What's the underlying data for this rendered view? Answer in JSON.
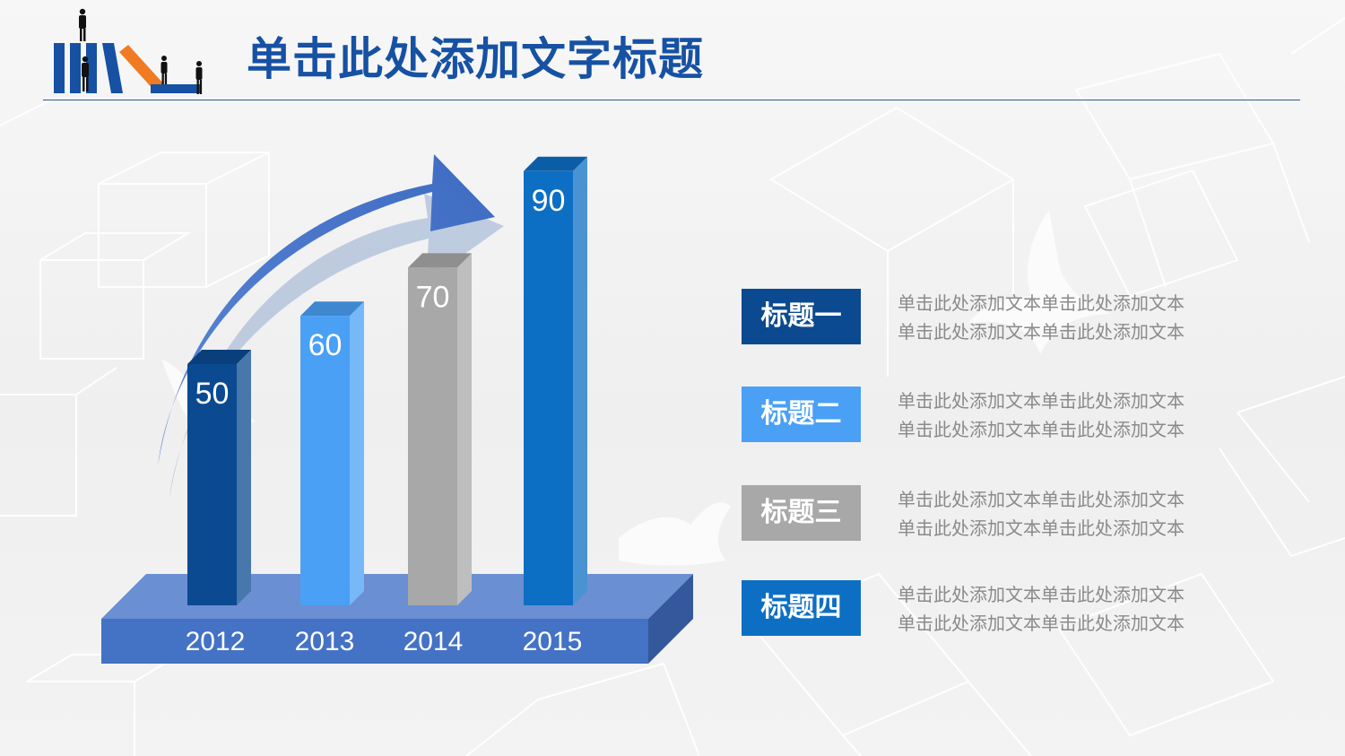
{
  "title": "单击此处添加文字标题",
  "colors": {
    "title": "#1651a3",
    "rule": "#2a5aa0",
    "bar_2012": "#0b4a90",
    "bar_2013": "#4aa0f5",
    "bar_2014": "#a8a8a8",
    "bar_2015": "#0d6fc3",
    "platform": "#4a7fcf",
    "arrow": "#4472c4",
    "legend_text": "#8a8a8a"
  },
  "logo": {
    "icon": "bars-with-businessmen-logo"
  },
  "chart_data": {
    "type": "bar",
    "categories": [
      "2012",
      "2013",
      "2014",
      "2015"
    ],
    "values": [
      50,
      60,
      70,
      90
    ],
    "data_labels": [
      "50",
      "60",
      "70",
      "90"
    ],
    "bar_colors": [
      "#0b4a90",
      "#4aa0f5",
      "#a8a8a8",
      "#0d6fc3"
    ],
    "style": "3d-columns-on-platform-with-upward-arrow",
    "title": "",
    "xlabel": "",
    "ylabel": "",
    "grid": false
  },
  "legend": [
    {
      "label": "标题一",
      "color": "#0b4a90",
      "lines": [
        "单击此处添加文本单击此处添加文本",
        "单击此处添加文本单击此处添加文本"
      ]
    },
    {
      "label": "标题二",
      "color": "#4aa0f5",
      "lines": [
        "单击此处添加文本单击此处添加文本",
        "单击此处添加文本单击此处添加文本"
      ]
    },
    {
      "label": "标题三",
      "color": "#a8a8a8",
      "lines": [
        "单击此处添加文本单击此处添加文本",
        "单击此处添加文本单击此处添加文本"
      ]
    },
    {
      "label": "标题四",
      "color": "#0d6fc3",
      "lines": [
        "单击此处添加文本单击此处添加文本",
        "单击此处添加文本单击此处添加文本"
      ]
    }
  ]
}
